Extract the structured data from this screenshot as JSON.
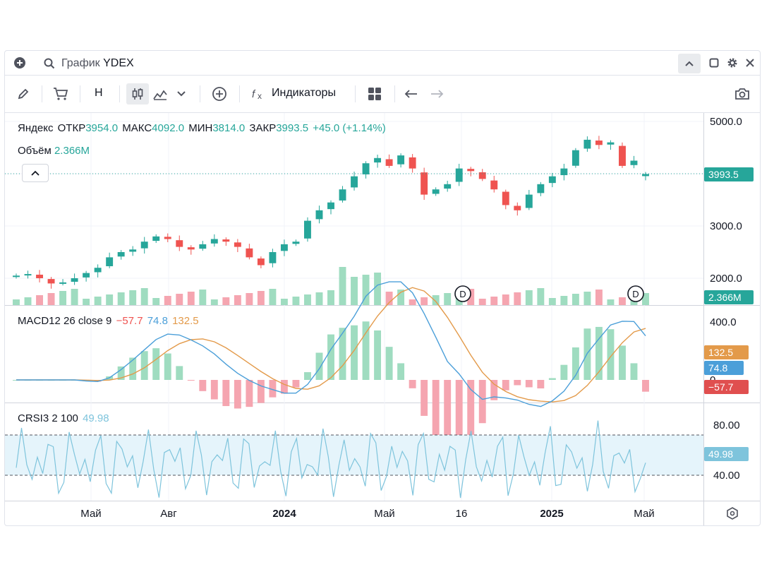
{
  "window": {
    "title_prefix": "График",
    "ticker": "YDEX"
  },
  "toolbar": {
    "interval_label": "H",
    "indicators_label": "Индикаторы"
  },
  "legend": {
    "name": "Яндекс",
    "open_label": "ОТКР",
    "open": "3954.0",
    "high_label": "МАКС",
    "high": "4092.0",
    "low_label": "МИН",
    "low": "3814.0",
    "close_label": "ЗАКР",
    "close": "3993.5",
    "change": "+45.0 (+1.14%)",
    "volume_label": "Объём",
    "volume": "2.366M"
  },
  "macd_legend": {
    "name": "MACD12 26 close 9",
    "hist": "−57.7",
    "macd": "74.8",
    "signal": "132.5"
  },
  "crsi_legend": {
    "name": "CRSI3 2 100",
    "value": "49.98"
  },
  "badges": {
    "price": "3993.5",
    "volume": "2.366M",
    "signal": "132.5",
    "macd": "74.8",
    "hist": "−57.7",
    "crsi": "49.98"
  },
  "colors": {
    "up": "#26a69a",
    "down": "#ef5350",
    "up_light": "#9fdcc0",
    "down_light": "#f5a5b0",
    "macd": "#4b9fd9",
    "signal": "#e39a4a",
    "crsi": "#7ec4dc"
  },
  "chart_data": {
    "type": "candlestick",
    "ticker": "YDEX",
    "y_ticks": [
      "5000.0",
      "3000.0",
      "2000.0"
    ],
    "macd_ticks": [
      "400.0",
      "0"
    ],
    "crsi_ticks": [
      "80.00",
      "40.00"
    ],
    "x_ticks": [
      "Май",
      "Авг",
      "2024",
      "Май",
      "16",
      "2025",
      "Май"
    ],
    "last_close": 3993.5,
    "series": [
      {
        "name": "Яндекс",
        "close": [
          2050,
          2080,
          2000,
          1900,
          1920,
          2000,
          2100,
          2200,
          2400,
          2500,
          2550,
          2700,
          2800,
          2750,
          2600,
          2550,
          2650,
          2750,
          2700,
          2600,
          2400,
          2250,
          2500,
          2650,
          2700,
          3100,
          3300,
          3450,
          3700,
          3950,
          4200,
          4300,
          4150,
          4350,
          4100,
          3600,
          3700,
          3800,
          4100,
          4050,
          3900,
          3700,
          3400,
          3300,
          3600,
          3800,
          3950,
          4100,
          4450,
          4650,
          4550,
          4600,
          4150,
          4250,
          3993.5
        ]
      }
    ]
  }
}
